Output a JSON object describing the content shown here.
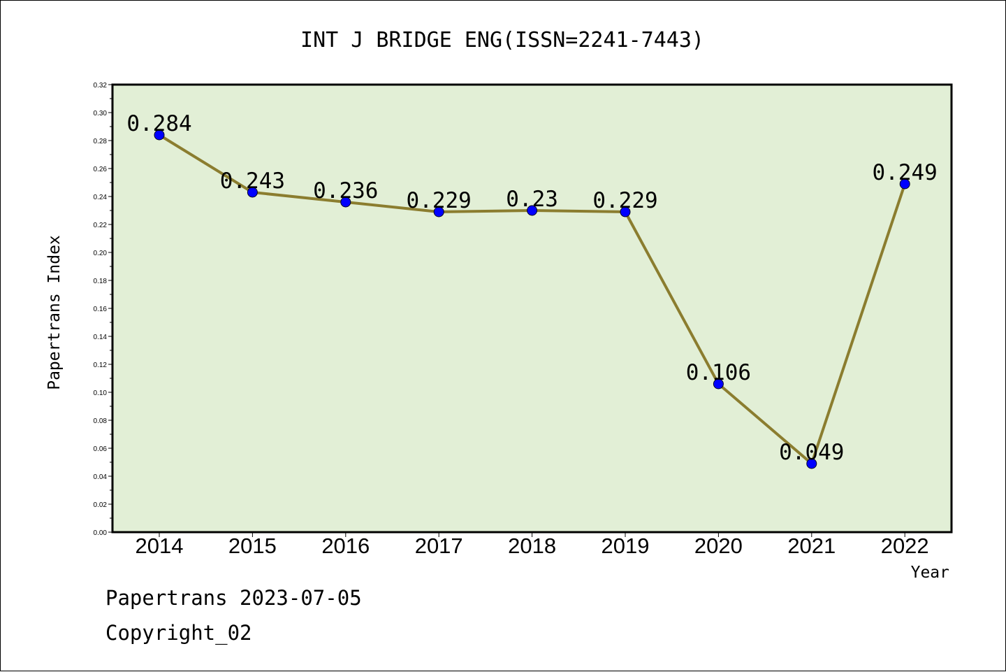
{
  "chart_data": {
    "type": "line",
    "title": "INT J BRIDGE ENG(ISSN=2241-7443)",
    "xlabel": "Year",
    "ylabel": "Papertrans Index",
    "categories": [
      "2014",
      "2015",
      "2016",
      "2017",
      "2018",
      "2019",
      "2020",
      "2021",
      "2022"
    ],
    "values": [
      0.284,
      0.243,
      0.236,
      0.229,
      0.23,
      0.229,
      0.106,
      0.049,
      0.249
    ],
    "data_labels": [
      "0.284",
      "0.243",
      "0.236",
      "0.229",
      "0.23",
      "0.229",
      "0.106",
      "0.049",
      "0.249"
    ],
    "ylim": [
      0,
      0.32
    ],
    "yticks": [
      "0.00",
      "0.02",
      "0.04",
      "0.06",
      "0.08",
      "0.10",
      "0.12",
      "0.14",
      "0.16",
      "0.18",
      "0.20",
      "0.22",
      "0.24",
      "0.26",
      "0.28",
      "0.30",
      "0.32"
    ],
    "grid": false,
    "colors": {
      "plot_background": "#e2efd6",
      "line": "#8b7d2f",
      "marker": "#0000ff"
    }
  },
  "footer": {
    "line1": "Papertrans 2023-07-05",
    "line2": "Copyright_02"
  }
}
